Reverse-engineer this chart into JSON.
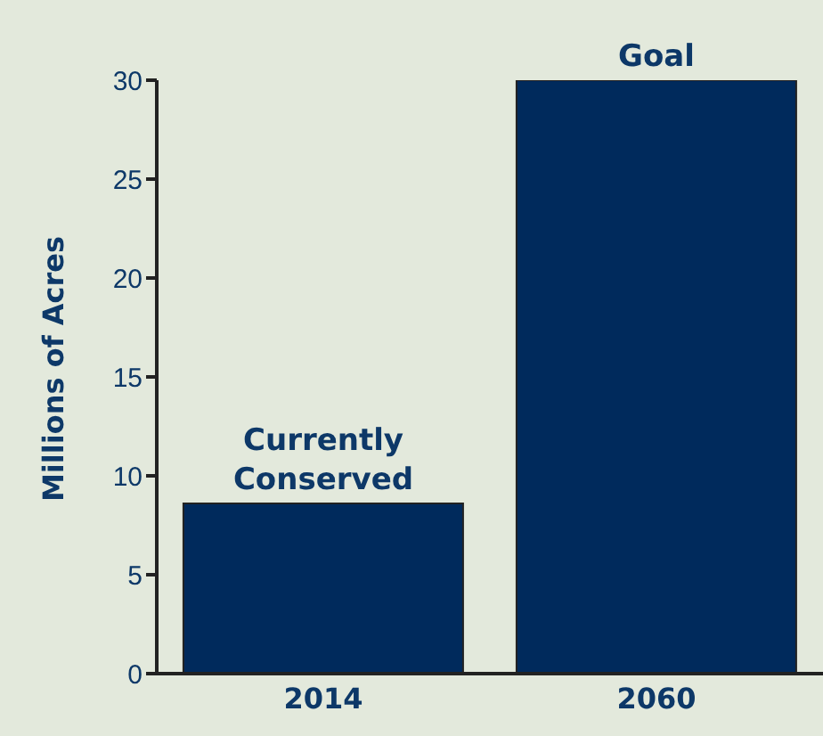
{
  "chart_data": {
    "type": "bar",
    "ylabel": "Millions of Acres",
    "categories": [
      "2014",
      "2060"
    ],
    "values": [
      8.6,
      30
    ],
    "color": "#002a5c",
    "ylim": [
      0,
      30
    ],
    "yticks": [
      0,
      5,
      10,
      15,
      20,
      25,
      30
    ],
    "annotations": [
      {
        "text": "Currently Conserved",
        "x": "2014",
        "y": 8.6
      },
      {
        "text": "Goal",
        "x": "2060",
        "y": 30
      }
    ]
  }
}
